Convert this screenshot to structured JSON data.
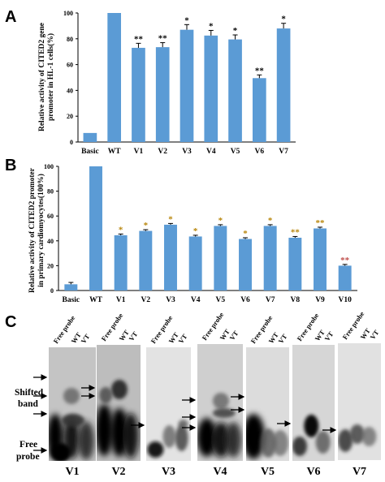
{
  "panels": {
    "a": "A",
    "b": "B",
    "c": "C"
  },
  "chart_data": [
    {
      "type": "bar",
      "ylabel_lines": [
        "Relative activity of CITED2 gene",
        "promoter in HL-1 cells(%)"
      ],
      "categories": [
        "Basic",
        "WT",
        "V1",
        "V2",
        "V3",
        "V4",
        "V5",
        "V6",
        "V7"
      ],
      "values": [
        7,
        100,
        73,
        73.5,
        87,
        82.5,
        79.5,
        49.5,
        88
      ],
      "errors": [
        0,
        0,
        3.5,
        3.5,
        4,
        4,
        3.5,
        2.5,
        4
      ],
      "significance": [
        "",
        "",
        "**",
        "**",
        "*",
        "*",
        "*",
        "**",
        "*"
      ],
      "yticks": [
        0,
        20,
        40,
        60,
        80,
        100
      ],
      "ylim": [
        0,
        100
      ],
      "bar_color": "#5b9bd5",
      "sig_color": "#000000"
    },
    {
      "type": "bar",
      "ylabel_lines": [
        "Relative activity of CITED2 promoter",
        "in primary cardiomyocytes(100%)"
      ],
      "categories": [
        "Basic",
        "WT",
        "V1",
        "V2",
        "V3",
        "V4",
        "V5",
        "V6",
        "V7",
        "V8",
        "V9",
        "V10"
      ],
      "values": [
        5,
        100,
        44.5,
        48,
        53,
        43.5,
        52,
        41.5,
        52,
        42.5,
        50,
        20
      ],
      "errors": [
        1.5,
        0,
        1,
        1,
        1,
        1,
        1,
        1,
        1,
        1,
        1,
        1
      ],
      "significance": [
        "",
        "",
        "*",
        "*",
        "*",
        "*",
        "*",
        "*",
        "*",
        "**",
        "**",
        "**"
      ],
      "yticks": [
        0,
        20,
        40,
        60,
        80,
        100
      ],
      "ylim": [
        0,
        100
      ],
      "bar_color": "#5b9bd5",
      "sig_color": "#b8860b",
      "sig_color_last": "#c0504d"
    }
  ],
  "blots": {
    "lane_labels": [
      "Free probe",
      "WT",
      "VT"
    ],
    "labels": [
      "V1",
      "V2",
      "V3",
      "V4",
      "V5",
      "V6",
      "V7"
    ],
    "shifted_band_lines": [
      "Shifted",
      "band"
    ],
    "free_probe_lines": [
      "Free",
      "probe"
    ]
  }
}
